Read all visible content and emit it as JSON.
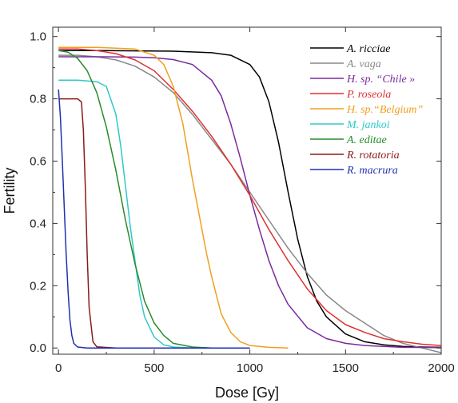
{
  "chart_data": {
    "type": "line",
    "title": "",
    "xlabel": "Dose [Gy]",
    "ylabel": "Fertility",
    "xlim": [
      -30,
      2000
    ],
    "ylim": [
      -0.02,
      1.03
    ],
    "xticks": [
      0,
      500,
      1000,
      1500,
      2000
    ],
    "yticks": [
      0.0,
      0.2,
      0.4,
      0.6,
      0.8,
      1.0
    ],
    "ytick_labels": [
      "0.0",
      "0.2",
      "0.4",
      "0.6",
      "0.8",
      "1.0"
    ],
    "grid": false,
    "legend_position": "top-right",
    "series": [
      {
        "name": "A. ricciae",
        "color": "#000000",
        "x": [
          0,
          200,
          400,
          600,
          800,
          900,
          1000,
          1050,
          1100,
          1150,
          1200,
          1250,
          1300,
          1350,
          1400,
          1500,
          1600,
          1700,
          1800,
          1900,
          2000
        ],
        "y": [
          0.955,
          0.955,
          0.954,
          0.953,
          0.948,
          0.94,
          0.91,
          0.87,
          0.79,
          0.66,
          0.5,
          0.35,
          0.23,
          0.15,
          0.1,
          0.045,
          0.02,
          0.01,
          0.005,
          0.003,
          0.002
        ]
      },
      {
        "name": "A. vaga",
        "color": "#888888",
        "x": [
          0,
          100,
          200,
          300,
          400,
          500,
          600,
          700,
          800,
          900,
          1000,
          1100,
          1200,
          1300,
          1400,
          1500,
          1600,
          1700,
          1800,
          1900,
          2000
        ],
        "y": [
          0.94,
          0.94,
          0.935,
          0.925,
          0.905,
          0.87,
          0.82,
          0.75,
          0.67,
          0.59,
          0.5,
          0.41,
          0.32,
          0.24,
          0.17,
          0.12,
          0.08,
          0.04,
          0.015,
          0.0,
          -0.015
        ]
      },
      {
        "name": "H. sp. “Chile »",
        "color": "#7a2a9e",
        "x": [
          0,
          200,
          400,
          500,
          600,
          700,
          800,
          850,
          900,
          950,
          1000,
          1050,
          1100,
          1150,
          1200,
          1300,
          1400,
          1500,
          1600,
          1800,
          2000
        ],
        "y": [
          0.935,
          0.935,
          0.934,
          0.932,
          0.926,
          0.91,
          0.86,
          0.81,
          0.72,
          0.61,
          0.49,
          0.38,
          0.28,
          0.2,
          0.14,
          0.065,
          0.03,
          0.015,
          0.008,
          0.002,
          0.001
        ]
      },
      {
        "name": "P. roseola",
        "color": "#e03030",
        "x": [
          0,
          100,
          200,
          300,
          400,
          500,
          600,
          700,
          800,
          900,
          1000,
          1100,
          1200,
          1300,
          1400,
          1500,
          1600,
          1700,
          1800,
          1900,
          2000
        ],
        "y": [
          0.96,
          0.96,
          0.955,
          0.945,
          0.925,
          0.89,
          0.83,
          0.76,
          0.68,
          0.59,
          0.49,
          0.38,
          0.28,
          0.19,
          0.12,
          0.075,
          0.05,
          0.03,
          0.02,
          0.012,
          0.008
        ]
      },
      {
        "name": "H. sp.“Belgium”",
        "color": "#f0a020",
        "x": [
          0,
          200,
          400,
          500,
          550,
          600,
          650,
          700,
          725,
          750,
          775,
          800,
          850,
          900,
          950,
          1000,
          1100,
          1200
        ],
        "y": [
          0.965,
          0.965,
          0.96,
          0.94,
          0.91,
          0.84,
          0.72,
          0.54,
          0.46,
          0.38,
          0.3,
          0.23,
          0.11,
          0.05,
          0.02,
          0.008,
          0.002,
          0.0
        ]
      },
      {
        "name": "M. jankoi",
        "color": "#30c8c8",
        "x": [
          0,
          100,
          200,
          250,
          300,
          325,
          350,
          375,
          400,
          425,
          450,
          500,
          550,
          600,
          700
        ],
        "y": [
          0.86,
          0.86,
          0.855,
          0.84,
          0.75,
          0.65,
          0.52,
          0.39,
          0.28,
          0.17,
          0.1,
          0.035,
          0.01,
          0.003,
          0.0
        ]
      },
      {
        "name": "A. editae",
        "color": "#2a8a2a",
        "x": [
          0,
          50,
          100,
          150,
          200,
          250,
          300,
          350,
          400,
          450,
          500,
          550,
          600,
          700,
          800
        ],
        "y": [
          0.955,
          0.95,
          0.93,
          0.89,
          0.82,
          0.71,
          0.57,
          0.41,
          0.27,
          0.15,
          0.08,
          0.04,
          0.015,
          0.003,
          0.0
        ]
      },
      {
        "name": "R. rotatoria",
        "color": "#8a1a1a",
        "x": [
          0,
          50,
          100,
          120,
          130,
          140,
          150,
          160,
          180,
          200,
          300,
          500,
          1000
        ],
        "y": [
          0.8,
          0.8,
          0.8,
          0.79,
          0.7,
          0.52,
          0.3,
          0.13,
          0.02,
          0.004,
          0.0,
          0.0,
          0.0
        ]
      },
      {
        "name": "R. macrura",
        "color": "#2030b0",
        "x": [
          0,
          10,
          20,
          30,
          40,
          50,
          60,
          70,
          80,
          100,
          150,
          200,
          500,
          1000
        ],
        "y": [
          0.83,
          0.74,
          0.6,
          0.45,
          0.3,
          0.18,
          0.09,
          0.04,
          0.015,
          0.003,
          0.0,
          0.0,
          0.0,
          0.0
        ]
      }
    ]
  }
}
